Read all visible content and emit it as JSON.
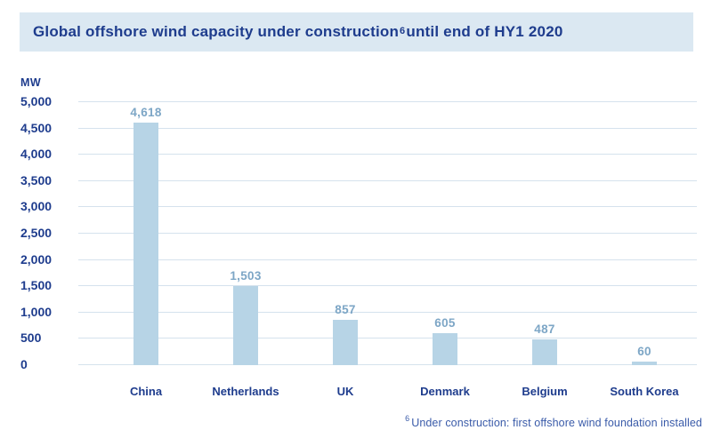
{
  "header": {
    "title_pre": "Global offshore wind capacity under construction",
    "title_sup": "6",
    "title_post": " until end of HY1 2020",
    "background": "#dbe8f2"
  },
  "chart_data": {
    "type": "bar",
    "title": "Global offshore wind capacity under construction (6) until end of HY1 2020",
    "xlabel": "",
    "ylabel": "MW",
    "categories": [
      "China",
      "Netherlands",
      "UK",
      "Denmark",
      "Belgium",
      "South Korea"
    ],
    "values": [
      4618,
      1503,
      857,
      605,
      487,
      60
    ],
    "value_labels": [
      "4,618",
      "1,503",
      "857",
      "605",
      "487",
      "60"
    ],
    "ylim": [
      0,
      5000
    ],
    "ytick_values": [
      0,
      500,
      1000,
      1500,
      2000,
      2500,
      3000,
      3500,
      4000,
      4500,
      5000
    ],
    "ytick_labels": [
      "0",
      "500",
      "1,000",
      "1,500",
      "2,000",
      "2,500",
      "3,000",
      "3,500",
      "4,000",
      "4,500",
      "5,000"
    ],
    "grid": true,
    "legend": "none",
    "colors": {
      "bar": "#b7d4e6",
      "gridline": "#d5e2ed",
      "axis_text": "#1e3c8d",
      "value_label": "#7da6c6",
      "title_bg": "#dbe8f2",
      "footnote_text": "#3a5ba9"
    }
  },
  "footnote": {
    "sup": "6",
    "text": "Under construction: first offshore wind foundation installed"
  }
}
